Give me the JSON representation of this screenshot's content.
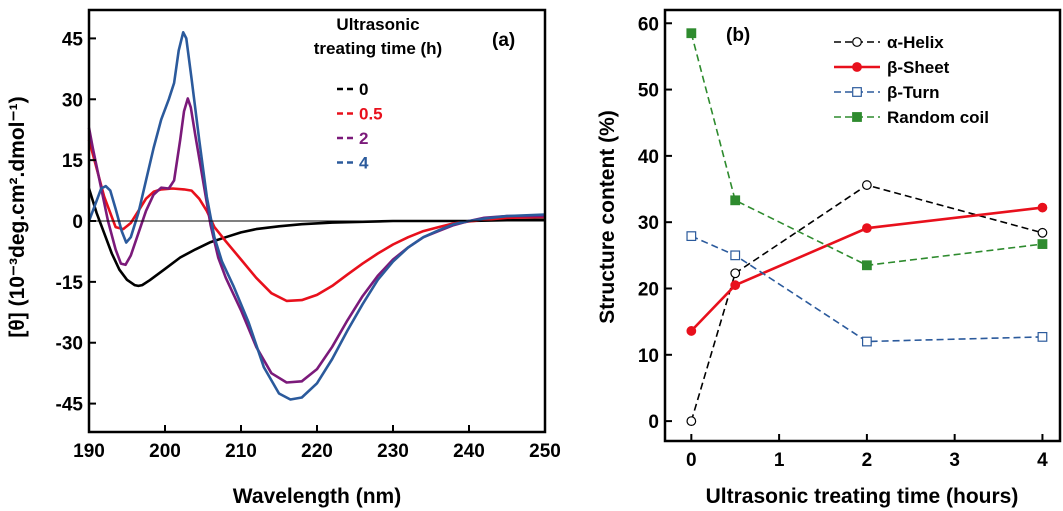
{
  "chart_data": [
    {
      "type": "line",
      "panel_label": "(a)",
      "xlabel": "Wavelength (nm)",
      "ylabel": "[θ] (10⁻³deg.cm².dmol⁻¹)",
      "xlim": [
        190,
        250
      ],
      "ylim": [
        -52,
        52
      ],
      "x_ticks": [
        190,
        200,
        210,
        220,
        230,
        240,
        250
      ],
      "y_ticks": [
        -45,
        -30,
        -15,
        0,
        15,
        30,
        45
      ],
      "x_tick_labels": [
        "190",
        "200",
        "210",
        "220",
        "230",
        "240",
        "250"
      ],
      "y_tick_labels": [
        "-45",
        "-30",
        "-15",
        "0",
        "15",
        "30",
        "45"
      ],
      "zero_line": true,
      "legend_title": "Ultrasonic\ntreating time (h)",
      "legend_placement": "top-right",
      "series": [
        {
          "name": "0",
          "color": "#000000",
          "points": [
            [
              190,
              8
            ],
            [
              190.5,
              5
            ],
            [
              191,
              2
            ],
            [
              192,
              -3
            ],
            [
              193,
              -8
            ],
            [
              194,
              -12
            ],
            [
              195,
              -14.5
            ],
            [
              196,
              -15.8
            ],
            [
              196.5,
              -16
            ],
            [
              197,
              -15.8
            ],
            [
              198,
              -14.6
            ],
            [
              199,
              -13.2
            ],
            [
              200,
              -11.8
            ],
            [
              202,
              -9
            ],
            [
              204,
              -7
            ],
            [
              206,
              -5.2
            ],
            [
              208,
              -4
            ],
            [
              210,
              -2.8
            ],
            [
              212,
              -2
            ],
            [
              215,
              -1.3
            ],
            [
              218,
              -0.8
            ],
            [
              222,
              -0.4
            ],
            [
              226,
              -0.2
            ],
            [
              230,
              0
            ],
            [
              235,
              0
            ],
            [
              240,
              0
            ],
            [
              245,
              0.2
            ],
            [
              250,
              0.3
            ]
          ]
        },
        {
          "name": "0.5",
          "color": "#e8101c",
          "points": [
            [
              190,
              20
            ],
            [
              191,
              13
            ],
            [
              192,
              6
            ],
            [
              193,
              1
            ],
            [
              193.5,
              -1.5
            ],
            [
              194.5,
              -2
            ],
            [
              195.5,
              -0.5
            ],
            [
              196.5,
              2.5
            ],
            [
              197.5,
              5.5
            ],
            [
              198.5,
              7.2
            ],
            [
              199.5,
              7.8
            ],
            [
              201,
              8
            ],
            [
              202.5,
              7.8
            ],
            [
              203.5,
              7.5
            ],
            [
              204.5,
              5.5
            ],
            [
              205.5,
              2.5
            ],
            [
              206.5,
              -1.5
            ],
            [
              208,
              -5
            ],
            [
              210,
              -9.5
            ],
            [
              212,
              -14
            ],
            [
              214,
              -17.8
            ],
            [
              216,
              -19.7
            ],
            [
              218,
              -19.5
            ],
            [
              220,
              -18.2
            ],
            [
              222,
              -16
            ],
            [
              224,
              -13.2
            ],
            [
              226,
              -10.5
            ],
            [
              228,
              -8
            ],
            [
              230,
              -5.8
            ],
            [
              232,
              -4
            ],
            [
              234,
              -2.5
            ],
            [
              236,
              -1.5
            ],
            [
              238,
              -0.6
            ],
            [
              240,
              -0.1
            ],
            [
              242,
              0.3
            ],
            [
              245,
              0.8
            ],
            [
              250,
              1
            ]
          ]
        },
        {
          "name": "2",
          "color": "#7b1a7a",
          "points": [
            [
              190,
              23
            ],
            [
              190.5,
              18
            ],
            [
              191.5,
              9
            ],
            [
              192.5,
              0
            ],
            [
              193.5,
              -7
            ],
            [
              194.2,
              -10.5
            ],
            [
              194.8,
              -10.8
            ],
            [
              195.5,
              -8.5
            ],
            [
              196.5,
              -3
            ],
            [
              197.5,
              2.5
            ],
            [
              198.5,
              6.5
            ],
            [
              199.5,
              8.2
            ],
            [
              200.5,
              8
            ],
            [
              201.2,
              10
            ],
            [
              202,
              20
            ],
            [
              202.5,
              27
            ],
            [
              203,
              30.2
            ],
            [
              203.4,
              28
            ],
            [
              204,
              21
            ],
            [
              205,
              10
            ],
            [
              206,
              -1
            ],
            [
              207,
              -9
            ],
            [
              208,
              -14
            ],
            [
              210,
              -22
            ],
            [
              212,
              -31
            ],
            [
              214,
              -37.5
            ],
            [
              216,
              -39.8
            ],
            [
              218,
              -39.5
            ],
            [
              220,
              -36.5
            ],
            [
              222,
              -31
            ],
            [
              224,
              -24.5
            ],
            [
              226,
              -18.5
            ],
            [
              228,
              -13.5
            ],
            [
              230,
              -9.5
            ],
            [
              232,
              -6.5
            ],
            [
              234,
              -4
            ],
            [
              236,
              -2.5
            ],
            [
              238,
              -1
            ],
            [
              240,
              0
            ],
            [
              242,
              0.8
            ],
            [
              245,
              1.2
            ],
            [
              250,
              1.2
            ]
          ]
        },
        {
          "name": "4",
          "color": "#2b5a9c",
          "points": [
            [
              190,
              0
            ],
            [
              190.8,
              4
            ],
            [
              191.6,
              8
            ],
            [
              192.2,
              8.6
            ],
            [
              192.8,
              7.5
            ],
            [
              193.5,
              3
            ],
            [
              194.3,
              -2.5
            ],
            [
              194.9,
              -5.3
            ],
            [
              195.5,
              -4
            ],
            [
              196.5,
              2
            ],
            [
              197.5,
              10
            ],
            [
              198.5,
              18
            ],
            [
              199.5,
              25
            ],
            [
              200.5,
              30
            ],
            [
              201.2,
              34
            ],
            [
              201.8,
              42
            ],
            [
              202.4,
              46.5
            ],
            [
              202.8,
              45
            ],
            [
              203.5,
              35
            ],
            [
              204.5,
              20
            ],
            [
              205.5,
              6
            ],
            [
              206.5,
              -4
            ],
            [
              207.5,
              -10
            ],
            [
              209,
              -16
            ],
            [
              211,
              -25
            ],
            [
              213,
              -36
            ],
            [
              215,
              -42.5
            ],
            [
              216.5,
              -44
            ],
            [
              218,
              -43.5
            ],
            [
              220,
              -40
            ],
            [
              222,
              -34
            ],
            [
              224,
              -27
            ],
            [
              226,
              -20.5
            ],
            [
              228,
              -14.5
            ],
            [
              230,
              -10
            ],
            [
              232,
              -6.5
            ],
            [
              234,
              -4
            ],
            [
              236,
              -2.3
            ],
            [
              238,
              -0.8
            ],
            [
              240,
              0
            ],
            [
              242,
              0.6
            ],
            [
              245,
              1.2
            ],
            [
              250,
              1.6
            ]
          ]
        }
      ]
    },
    {
      "type": "line",
      "panel_label": "(b)",
      "xlabel": "Ultrasonic treating time (hours)",
      "ylabel": "Structure content (%)",
      "xlim": [
        -0.3,
        4.2
      ],
      "ylim": [
        -3,
        62
      ],
      "x_ticks": [
        0,
        1,
        2,
        3,
        4
      ],
      "y_ticks": [
        0,
        10,
        20,
        30,
        40,
        50,
        60
      ],
      "x_tick_labels": [
        "0",
        "1",
        "2",
        "3",
        "4"
      ],
      "y_tick_labels": [
        "0",
        "10",
        "20",
        "30",
        "40",
        "50",
        "60"
      ],
      "legend_placement": "top-right",
      "x": [
        0,
        0.5,
        2,
        4
      ],
      "series": [
        {
          "name": "α-Helix",
          "color": "#000000",
          "dash": true,
          "marker": "circle-open",
          "values": [
            0,
            22.3,
            35.6,
            28.4
          ]
        },
        {
          "name": "β-Sheet",
          "color": "#e8101c",
          "dash": false,
          "marker": "circle-filled",
          "values": [
            13.6,
            20.5,
            29.1,
            32.2
          ]
        },
        {
          "name": "β-Turn",
          "color": "#2b5a9c",
          "dash": true,
          "marker": "square-open",
          "values": [
            27.9,
            25.0,
            12.0,
            12.7
          ]
        },
        {
          "name": "Random coil",
          "color": "#2e8b2e",
          "dash": true,
          "marker": "square-filled",
          "values": [
            58.5,
            33.3,
            23.5,
            26.7
          ]
        }
      ]
    }
  ]
}
